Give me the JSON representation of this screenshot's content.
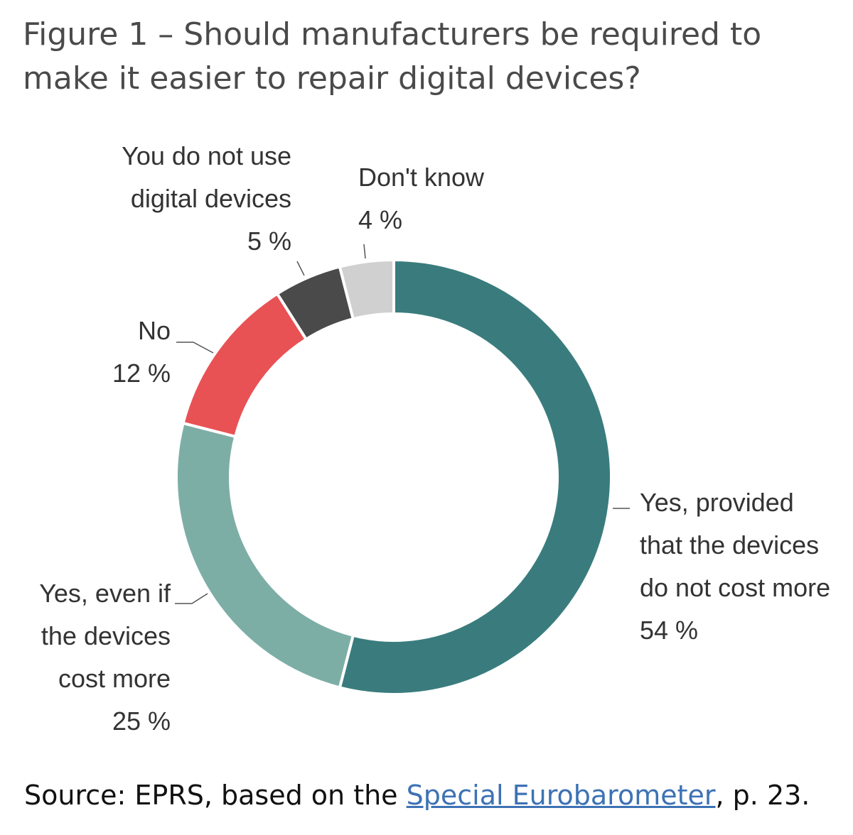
{
  "title_lines": [
    "Figure 1 – Should manufacturers be required to",
    "make it easier to repair digital devices?"
  ],
  "chart_data": {
    "type": "pie",
    "variant": "donut",
    "slices": [
      {
        "label_lines": [
          "Yes, provided",
          "that the devices",
          "do not cost more"
        ],
        "value": 54,
        "value_label": "54 %",
        "color": "#3a7c7d"
      },
      {
        "label_lines": [
          "Yes, even if",
          "the devices",
          "cost more"
        ],
        "value": 25,
        "value_label": "25 %",
        "color": "#7daea6"
      },
      {
        "label_lines": [
          "No"
        ],
        "value": 12,
        "value_label": "12 %",
        "color": "#e85255"
      },
      {
        "label_lines": [
          "You do not use",
          "digital devices"
        ],
        "value": 5,
        "value_label": "5 %",
        "color": "#4a4a4a"
      },
      {
        "label_lines": [
          "Don't know"
        ],
        "value": 4,
        "value_label": "4 %",
        "color": "#d0d0d0"
      }
    ]
  },
  "source": {
    "prefix": "Source: EPRS, based on the ",
    "link": "Special Eurobarometer",
    "suffix": ", p. 23."
  }
}
